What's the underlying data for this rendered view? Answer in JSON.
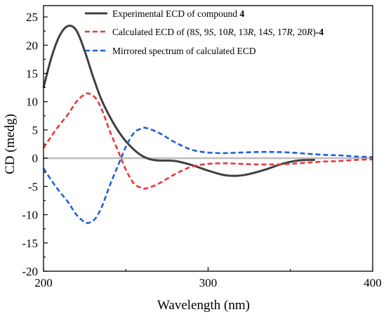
{
  "chart_data": {
    "type": "line",
    "xlabel": "Wavelength (nm)",
    "ylabel": "CD (medg)",
    "xlim": [
      200,
      400
    ],
    "ylim": [
      -20,
      27
    ],
    "x_ticks": [
      200,
      300,
      400
    ],
    "y_ticks": [
      -20,
      -15,
      -10,
      -5,
      0,
      5,
      10,
      15,
      20,
      25
    ],
    "grid": false,
    "legend_position": "top-right",
    "zero_line": {
      "y": 0,
      "color": "#bdbdbd"
    },
    "series": [
      {
        "name": "Experimental ECD of compound 4",
        "legend_parts": [
          {
            "text": "Experimental ECD of compound ",
            "bold": false,
            "italic": false
          },
          {
            "text": "4",
            "bold": true,
            "italic": false
          }
        ],
        "color": "#404040",
        "dash": "solid",
        "x": [
          200,
          205,
          210,
          215,
          220,
          225,
          230,
          235,
          240,
          245,
          250,
          255,
          260,
          265,
          270,
          280,
          290,
          300,
          310,
          318,
          325,
          335,
          345,
          355,
          365
        ],
        "y": [
          12.5,
          18.0,
          21.8,
          23.4,
          22.6,
          19.0,
          14.5,
          10.5,
          7.5,
          5.0,
          3.0,
          1.5,
          0.4,
          -0.2,
          -0.4,
          -0.5,
          -1.2,
          -2.2,
          -3.0,
          -3.1,
          -2.8,
          -2.0,
          -1.0,
          -0.4,
          -0.3
        ]
      },
      {
        "name": "Calculated ECD of (8S, 9S, 10R, 13R, 14S, 17R, 20R)-4",
        "legend_parts": [
          {
            "text": "Calculated ECD of (8",
            "bold": false,
            "italic": false
          },
          {
            "text": "S",
            "bold": false,
            "italic": true
          },
          {
            "text": ", 9",
            "bold": false,
            "italic": false
          },
          {
            "text": "S",
            "bold": false,
            "italic": true
          },
          {
            "text": ", 10",
            "bold": false,
            "italic": false
          },
          {
            "text": "R",
            "bold": false,
            "italic": true
          },
          {
            "text": ", 13",
            "bold": false,
            "italic": false
          },
          {
            "text": "R",
            "bold": false,
            "italic": true
          },
          {
            "text": ", 14",
            "bold": false,
            "italic": false
          },
          {
            "text": "S",
            "bold": false,
            "italic": true
          },
          {
            "text": ", 17",
            "bold": false,
            "italic": false
          },
          {
            "text": "R",
            "bold": false,
            "italic": true
          },
          {
            "text": ", 20",
            "bold": false,
            "italic": false
          },
          {
            "text": "R",
            "bold": false,
            "italic": true
          },
          {
            "text": ")",
            "bold": false,
            "italic": false
          },
          {
            "text": "-4",
            "bold": true,
            "italic": false
          }
        ],
        "color": "#e8383a",
        "dash": "dashed",
        "x": [
          200,
          205,
          210,
          215,
          220,
          225,
          228,
          232,
          236,
          240,
          245,
          250,
          255,
          260,
          263,
          270,
          280,
          290,
          300,
          310,
          320,
          330,
          340,
          350,
          360,
          370,
          380,
          390,
          400
        ],
        "y": [
          1.8,
          4.0,
          6.0,
          7.8,
          10.0,
          11.3,
          11.4,
          10.5,
          8.2,
          5.0,
          1.5,
          -2.0,
          -4.5,
          -5.3,
          -5.3,
          -4.5,
          -2.8,
          -1.5,
          -1.0,
          -0.9,
          -1.0,
          -1.1,
          -1.1,
          -1.0,
          -0.8,
          -0.6,
          -0.5,
          -0.3,
          -0.2
        ]
      },
      {
        "name": "Mirrored spectrum of calculated ECD",
        "legend_parts": [
          {
            "text": "Mirrored spectrum of calculated ECD",
            "bold": false,
            "italic": false
          }
        ],
        "color": "#1f5fd6",
        "dash": "dashed",
        "x": [
          200,
          205,
          210,
          215,
          220,
          225,
          228,
          232,
          236,
          240,
          245,
          250,
          255,
          260,
          263,
          270,
          280,
          290,
          300,
          310,
          320,
          330,
          340,
          350,
          360,
          370,
          380,
          390,
          400
        ],
        "y": [
          -1.8,
          -4.0,
          -6.0,
          -7.8,
          -10.0,
          -11.3,
          -11.4,
          -10.5,
          -8.2,
          -5.0,
          -1.5,
          2.0,
          4.5,
          5.3,
          5.3,
          4.5,
          2.8,
          1.5,
          1.0,
          0.9,
          1.0,
          1.1,
          1.1,
          1.0,
          0.8,
          0.6,
          0.5,
          0.3,
          0.2
        ]
      }
    ]
  }
}
